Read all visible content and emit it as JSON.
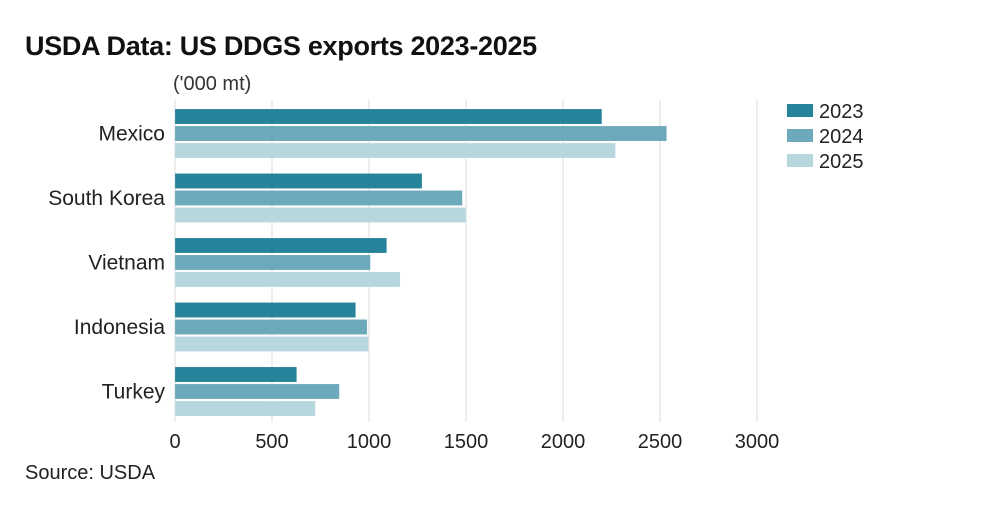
{
  "header": {
    "title": "USDA Data: US DDGS exports 2023-2025",
    "unit_label": "('000 mt)"
  },
  "footer": {
    "source": "Source: USDA"
  },
  "chart_data": {
    "type": "bar",
    "orientation": "horizontal",
    "title": "USDA Data: US DDGS exports 2023-2025",
    "xlabel": "",
    "ylabel": "",
    "unit": "('000 mt)",
    "categories": [
      "Mexico",
      "South Korea",
      "Vietnam",
      "Indonesia",
      "Turkey"
    ],
    "series": [
      {
        "name": "2023",
        "color": "#26839a",
        "values": [
          2200,
          1273,
          1091,
          931,
          627
        ]
      },
      {
        "name": "2024",
        "color": "#6ba9bb",
        "values": [
          2534,
          1481,
          1007,
          990,
          847
        ]
      },
      {
        "name": "2025",
        "color": "#b7d7df",
        "values": [
          2270,
          1500,
          1160,
          997,
          723
        ]
      }
    ],
    "xlim": [
      0,
      3000
    ],
    "xticks": [
      0,
      500,
      1000,
      1500,
      2000,
      2500,
      3000
    ],
    "xtick_labels": [
      "0",
      "500",
      "1000",
      "1500",
      "2000",
      "2500",
      "3000"
    ],
    "grid": true,
    "legend_position": "top-right"
  }
}
